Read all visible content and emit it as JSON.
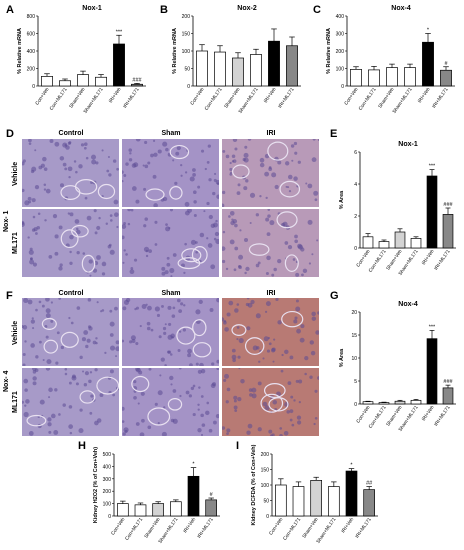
{
  "panels": {
    "A": "A",
    "B": "B",
    "C": "C",
    "D": "D",
    "E": "E",
    "F": "F",
    "G": "G",
    "H": "H",
    "I": "I"
  },
  "micrographs": {
    "col_labels": [
      "Control",
      "Sham",
      "IRI"
    ],
    "row_labels": [
      "Vehicle",
      "ML171"
    ],
    "d_group": "Nox- 1",
    "f_group": "Nox- 4",
    "stain_colors": {
      "control": "#a79ac8",
      "sham": "#a493c6",
      "iri_light": "#b89ab8",
      "iri_brown": "#b87a74"
    }
  },
  "chart_data": [
    {
      "id": "A",
      "type": "bar",
      "title": "Nox-1",
      "xlabel": "",
      "ylabel": "% Relative mRNA",
      "ylim": [
        0,
        800
      ],
      "yticks": [
        0,
        200,
        400,
        600,
        800
      ],
      "categories": [
        "Con+Veh",
        "Con+ML171",
        "Sham+Veh",
        "Sham+ML171",
        "IRI+Veh",
        "IRI+ML171"
      ],
      "values": [
        110,
        60,
        130,
        100,
        480,
        20
      ],
      "errors": [
        30,
        20,
        40,
        30,
        100,
        10
      ],
      "annotations": [
        "",
        "",
        "",
        "",
        "***",
        "###"
      ]
    },
    {
      "id": "B",
      "type": "bar",
      "title": "Nox-2",
      "xlabel": "",
      "ylabel": "% Relative mRNA",
      "ylim": [
        0,
        200
      ],
      "yticks": [
        0,
        50,
        100,
        150,
        200
      ],
      "categories": [
        "Con+Veh",
        "Con+ML171",
        "Sham+Veh",
        "Sham+ML171",
        "IRI+Veh",
        "IRI+ML171"
      ],
      "values": [
        100,
        97,
        80,
        90,
        128,
        115
      ],
      "errors": [
        18,
        18,
        15,
        15,
        35,
        25
      ],
      "annotations": [
        "",
        "",
        "",
        "",
        "",
        ""
      ]
    },
    {
      "id": "C",
      "type": "bar",
      "title": "Nox-4",
      "xlabel": "",
      "ylabel": "% Relative mRNA",
      "ylim": [
        0,
        400
      ],
      "yticks": [
        0,
        100,
        200,
        300,
        400
      ],
      "categories": [
        "Con+Veh",
        "Con+ML171",
        "Sham+Veh",
        "Sham+ML171",
        "IRI+Veh",
        "IRI+ML171"
      ],
      "values": [
        95,
        92,
        105,
        105,
        250,
        90
      ],
      "errors": [
        15,
        20,
        20,
        20,
        50,
        20
      ],
      "annotations": [
        "",
        "",
        "",
        "",
        "*",
        "#"
      ]
    },
    {
      "id": "E",
      "type": "bar",
      "title": "Nox-1",
      "xlabel": "",
      "ylabel": "% Area",
      "ylim": [
        0,
        6
      ],
      "yticks": [
        0,
        2,
        4,
        6
      ],
      "categories": [
        "Con+Veh",
        "Con+ML171",
        "Sham+Veh",
        "Sham+ML171",
        "IRI+Veh",
        "IRI+ML171"
      ],
      "values": [
        0.7,
        0.4,
        1.0,
        0.6,
        4.5,
        2.1
      ],
      "errors": [
        0.2,
        0.1,
        0.2,
        0.1,
        0.4,
        0.4
      ],
      "annotations": [
        "",
        "",
        "",
        "",
        "***",
        "###"
      ]
    },
    {
      "id": "G",
      "type": "bar",
      "title": "Nox-4",
      "xlabel": "",
      "ylabel": "% Area",
      "ylim": [
        0,
        20
      ],
      "yticks": [
        0,
        5,
        10,
        15,
        20
      ],
      "categories": [
        "Con+Veh",
        "Con+ML171",
        "Sham+Veh",
        "Sham+ML171",
        "IRI+Veh",
        "IRI+ML171"
      ],
      "values": [
        0.5,
        0.3,
        0.6,
        0.8,
        14.2,
        3.5
      ],
      "errors": [
        0.1,
        0.1,
        0.2,
        0.2,
        1.8,
        0.6
      ],
      "annotations": [
        "",
        "",
        "",
        "",
        "***",
        "###"
      ]
    },
    {
      "id": "H",
      "type": "bar",
      "title": "",
      "xlabel": "",
      "ylabel": "Kidney H2O2 (% of Con+Veh)",
      "ylim": [
        0,
        500
      ],
      "yticks": [
        0,
        100,
        200,
        300,
        400,
        500
      ],
      "categories": [
        "Con+Veh",
        "Con+ML171",
        "Sham+Veh",
        "Sham+ML171",
        "IRI+Veh",
        "IRI+ML171"
      ],
      "values": [
        100,
        90,
        100,
        115,
        320,
        130
      ],
      "errors": [
        20,
        15,
        15,
        15,
        70,
        15
      ],
      "annotations": [
        "",
        "",
        "",
        "",
        "*",
        "#"
      ]
    },
    {
      "id": "I",
      "type": "bar",
      "title": "",
      "xlabel": "",
      "ylabel": "Kidney DCFDA (% of Con+Veh)",
      "ylim": [
        0,
        200
      ],
      "yticks": [
        0,
        50,
        100,
        150,
        200
      ],
      "categories": [
        "Con+Veh",
        "Con+ML171",
        "Sham+Veh",
        "Sham+ML171",
        "IRI+Veh",
        "IRI+ML171"
      ],
      "values": [
        100,
        95,
        115,
        95,
        145,
        85
      ],
      "errors": [
        20,
        15,
        10,
        15,
        8,
        10
      ],
      "annotations": [
        "",
        "",
        "",
        "",
        "*",
        "##"
      ]
    }
  ],
  "bar_colors": [
    "#ffffff",
    "#ffffff",
    "#ffffff",
    "#ffffff",
    "#000000",
    "#888888"
  ],
  "bar_colors_bc": [
    "#ffffff",
    "#ffffff",
    "#d3d3d3",
    "#ffffff",
    "#000000",
    "#888888"
  ]
}
